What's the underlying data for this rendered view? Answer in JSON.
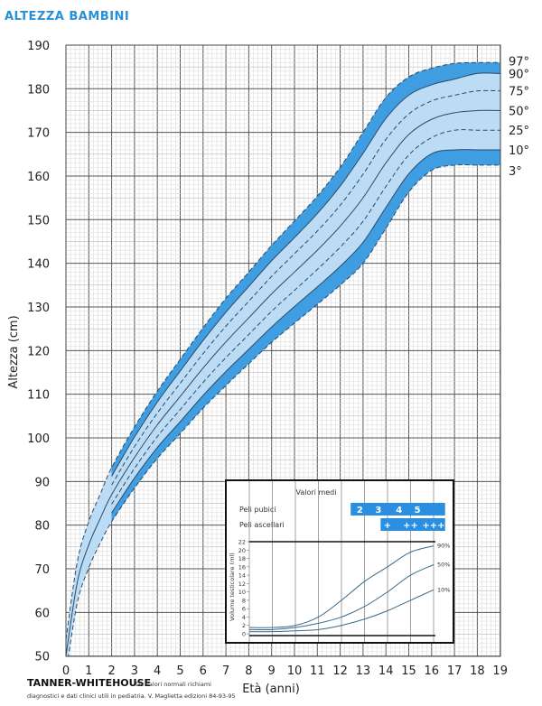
{
  "header": {
    "title": "ALTEZZA BAMBINI"
  },
  "footer": {
    "source": "TANNER-WHITEHOUSE",
    "note_line1": "Da valori normali richiami",
    "note_line2": "diagnostici e dati clinici utili in pediatria. V. Maglietta edizioni 84-93-95"
  },
  "colors": {
    "band_dark": "#3f9de2",
    "band_light": "#bcdcf5",
    "line": "#2b4a68",
    "title": "#2a8fd6",
    "inset_bar": "#2a8fe0"
  },
  "chart_data": [
    {
      "type": "line",
      "title": "ALTEZZA BAMBINI",
      "xlabel": "Età (anni)",
      "ylabel": "Altezza (cm)",
      "xlim": [
        0,
        19
      ],
      "ylim": [
        50,
        190
      ],
      "xticks": [
        "0",
        "1",
        "2",
        "3",
        "4",
        "5",
        "6",
        "7",
        "8",
        "9",
        "10",
        "11",
        "12",
        "13",
        "14",
        "15",
        "16",
        "17",
        "18",
        "19"
      ],
      "yticks": [
        "50",
        "60",
        "70",
        "80",
        "90",
        "100",
        "110",
        "120",
        "130",
        "140",
        "150",
        "160",
        "170",
        "180",
        "190"
      ],
      "grid": true,
      "x": [
        0,
        0.5,
        1,
        1.5,
        2,
        3,
        4,
        5,
        6,
        7,
        8,
        9,
        10,
        11,
        12,
        13,
        14,
        15,
        16,
        17,
        18,
        19
      ],
      "series": [
        {
          "name": "97°",
          "style": "dashed",
          "values": [
            53.8,
            71.7,
            80.8,
            87.1,
            93.2,
            102.5,
            110.7,
            118.0,
            125.2,
            132.0,
            138.0,
            144.1,
            149.7,
            155.4,
            162.0,
            170.0,
            178.0,
            182.7,
            184.7,
            185.8,
            186,
            186
          ]
        },
        {
          "name": "90°",
          "style": "solid",
          "values": [
            52.6,
            70.2,
            79.1,
            85.3,
            91.2,
            100.2,
            108.2,
            115.3,
            122.3,
            128.8,
            134.7,
            140.6,
            145.9,
            151.4,
            157.7,
            165.2,
            173.2,
            178.5,
            180.9,
            182.2,
            183.5,
            183.5
          ]
        },
        {
          "name": "75°",
          "style": "dashed",
          "values": [
            51.3,
            68.7,
            77.4,
            83.5,
            89.2,
            98.0,
            105.7,
            112.5,
            119.3,
            125.6,
            131.3,
            137.0,
            142.2,
            147.4,
            153.3,
            160.4,
            168.4,
            174.2,
            177.2,
            178.5,
            179.5,
            179.5
          ]
        },
        {
          "name": "50°",
          "style": "solid",
          "values": [
            50,
            67,
            75.5,
            81.5,
            87,
            95.5,
            103,
            109.5,
            116,
            122,
            127.5,
            133,
            138,
            143,
            148.5,
            155,
            163,
            169.5,
            173,
            174.5,
            175,
            175
          ]
        },
        {
          "name": "25°",
          "style": "dashed",
          "values": [
            48.7,
            65.3,
            73.6,
            79.5,
            84.8,
            93.0,
            100.3,
            106.5,
            112.7,
            118.4,
            123.7,
            129.0,
            133.8,
            138.6,
            143.7,
            149.6,
            157.6,
            164.8,
            168.8,
            170.5,
            170.5,
            170.5
          ]
        },
        {
          "name": "10°",
          "style": "solid",
          "values": [
            47.4,
            63.8,
            71.9,
            77.7,
            82.8,
            90.8,
            97.8,
            103.7,
            109.7,
            115.2,
            120.3,
            125.4,
            130.1,
            134.6,
            139.3,
            144.8,
            152.8,
            160.5,
            165.1,
            166,
            166,
            166
          ]
        },
        {
          "name": "3°",
          "style": "dashed",
          "values": [
            46.2,
            62.3,
            70.2,
            75.9,
            80.8,
            88.5,
            95.3,
            101.0,
            106.8,
            112.0,
            117.0,
            121.9,
            126.3,
            130.6,
            135.0,
            140.0,
            148.0,
            156.3,
            161.3,
            162.5,
            162.5,
            162.5
          ]
        }
      ]
    },
    {
      "type": "line",
      "title": "Valori medi",
      "ylabel": "Volume testicolare (ml)",
      "ylim": [
        0,
        22
      ],
      "yticks": [
        "0",
        "2",
        "4",
        "6",
        "8",
        "10",
        "12",
        "14",
        "16",
        "18",
        "20",
        "22"
      ],
      "x": [
        8,
        9,
        10,
        11,
        12,
        13,
        14,
        15,
        16
      ],
      "series": [
        {
          "name": "90%",
          "values": [
            1.5,
            1.5,
            2,
            4,
            8,
            12.5,
            16,
            19.5,
            21
          ]
        },
        {
          "name": "50%",
          "values": [
            1,
            1,
            1.5,
            2.5,
            4,
            6.5,
            10,
            14,
            16.5
          ]
        },
        {
          "name": "10%",
          "values": [
            0.5,
            0.5,
            0.7,
            1,
            2,
            3.5,
            5.5,
            8,
            10.5
          ]
        }
      ],
      "stages": [
        {
          "label": "Peli pubici",
          "range": [
            12.4,
            16.5
          ],
          "marks": [
            {
              "text": "2",
              "age": 12.8
            },
            {
              "text": "3",
              "age": 13.6
            },
            {
              "text": "4",
              "age": 14.5
            },
            {
              "text": "5",
              "age": 15.3
            }
          ]
        },
        {
          "label": "Peli ascellari",
          "range": [
            13.7,
            16.5
          ],
          "marks": [
            {
              "text": "+",
              "age": 14.0
            },
            {
              "text": "++",
              "age": 15.0
            },
            {
              "text": "+++",
              "age": 16.0
            }
          ]
        }
      ]
    }
  ]
}
